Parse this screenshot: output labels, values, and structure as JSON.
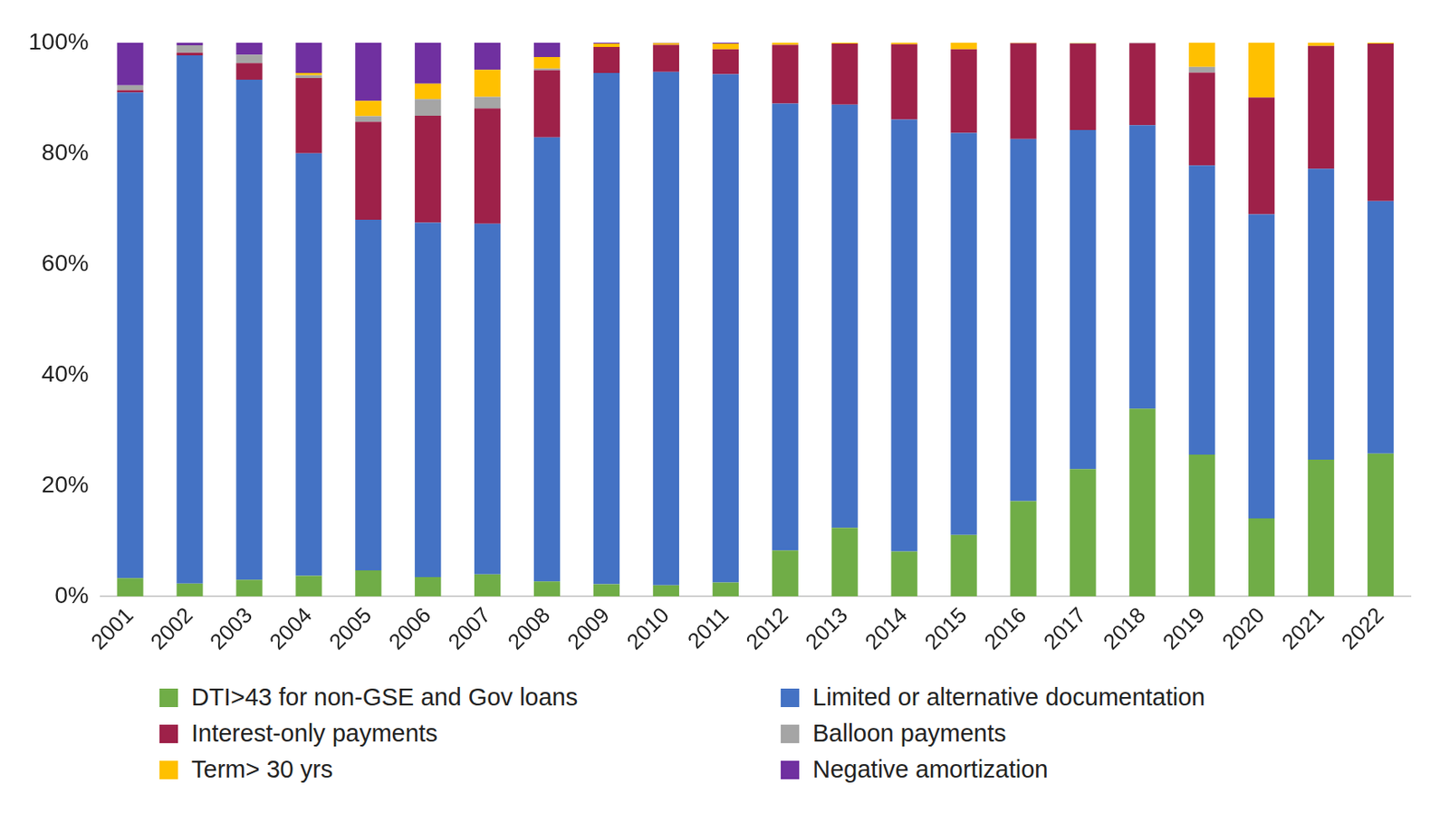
{
  "chart_data": {
    "type": "bar",
    "stacked": true,
    "grid": false,
    "legend": "bottom",
    "categories": [
      "2001",
      "2002",
      "2003",
      "2004",
      "2005",
      "2006",
      "2007",
      "2008",
      "2009",
      "2010",
      "2011",
      "2012",
      "2013",
      "2014",
      "2015",
      "2016",
      "2017",
      "2018",
      "2019",
      "2020",
      "2021",
      "2022"
    ],
    "ylim": [
      0,
      100
    ],
    "yticks": [
      {
        "value": 0,
        "label": "0%"
      },
      {
        "value": 20,
        "label": "20%"
      },
      {
        "value": 40,
        "label": "40%"
      },
      {
        "value": 60,
        "label": "60%"
      },
      {
        "value": 80,
        "label": "80%"
      },
      {
        "value": 100,
        "label": "100%"
      }
    ],
    "series": [
      {
        "name": "DTI>43 for non-GSE and Gov loans",
        "color": "#70ad47",
        "values": [
          3.3,
          2.3,
          3,
          3.7,
          4.7,
          3.5,
          4,
          2.7,
          2.2,
          2,
          2.5,
          8.3,
          12.4,
          8.1,
          11.1,
          17.2,
          23,
          33.9,
          25.6,
          14.1,
          24.7,
          25.8
        ]
      },
      {
        "name": "Limited or alternative documentation",
        "color": "#4472c4",
        "values": [
          87.7,
          95.4,
          90.3,
          76.3,
          63.3,
          64,
          63.3,
          80.2,
          92.3,
          92.7,
          91.8,
          80.7,
          76.4,
          78,
          72.6,
          65.4,
          61.2,
          51.2,
          52.2,
          54.9,
          52.5,
          45.6
        ]
      },
      {
        "name": "Interest-only payments",
        "color": "#9e2149",
        "values": [
          0.4,
          0.5,
          3,
          13.6,
          17.7,
          19.3,
          20.8,
          12.1,
          4.7,
          4.9,
          4.5,
          10.6,
          11,
          13.6,
          15.1,
          17.3,
          15.6,
          14.8,
          16.8,
          21.1,
          22.2,
          28.4
        ]
      },
      {
        "name": "Balloon payments",
        "color": "#a5a5a5",
        "values": [
          0.9,
          1.3,
          1.5,
          0.5,
          1,
          3,
          2.1,
          0.3,
          0,
          0,
          0,
          0,
          0,
          0,
          0,
          0,
          0.1,
          0.1,
          1,
          0,
          0,
          0
        ]
      },
      {
        "name": "Term> 30 yrs",
        "color": "#ffc000",
        "values": [
          0,
          0,
          0,
          0.4,
          2.8,
          2.8,
          4.9,
          2.1,
          0.6,
          0.3,
          1,
          0.4,
          0.2,
          0.3,
          1.2,
          0.1,
          0.1,
          0,
          4.4,
          9.9,
          0.6,
          0.2
        ]
      },
      {
        "name": "Negative amortization",
        "color": "#7030a0",
        "values": [
          7.7,
          0.5,
          2.2,
          5.5,
          10.5,
          7.4,
          4.9,
          2.6,
          0.2,
          0.1,
          0.2,
          0,
          0,
          0,
          0,
          0,
          0,
          0,
          0,
          0,
          0,
          0
        ]
      }
    ]
  }
}
